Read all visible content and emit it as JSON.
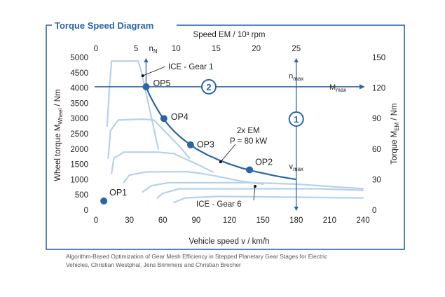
{
  "chart_data": {
    "type": "line",
    "title": "Torque Speed Diagram",
    "xlabel": "Vehicle speed v / km/h",
    "ylabel_left": "Wheel torque M",
    "ylabel_left_sub": "Wheel",
    "ylabel_left_unit": " / Nm",
    "xlabel_top": "Speed EM / 10³ rpm",
    "ylabel_right": "Torque M",
    "ylabel_right_sub": "EM",
    "ylabel_right_unit": " / Nm",
    "xlim": [
      0,
      240
    ],
    "ylim": [
      0,
      5000
    ],
    "x_ticks": [
      "0",
      "30",
      "60",
      "90",
      "120",
      "150",
      "180",
      "210",
      "240"
    ],
    "y_ticks": [
      "0",
      "500",
      "1000",
      "1500",
      "2000",
      "2500",
      "3000",
      "3500",
      "4000",
      "4500",
      "5000"
    ],
    "top_ticks": [
      "0",
      "5",
      "10",
      "15",
      "20",
      "25"
    ],
    "top_extra_label": "n",
    "top_extra_sub": "N",
    "right_ticks": [
      "0",
      "30",
      "60",
      "90",
      "120",
      "150"
    ],
    "em_curve": {
      "name": "2x EM",
      "note": "P = 80 kW",
      "x": [
        45,
        48,
        52,
        56,
        60,
        65,
        70,
        75,
        80,
        90,
        100,
        110,
        120,
        130,
        140,
        150,
        160,
        170,
        180
      ],
      "y": [
        4040,
        3780,
        3500,
        3250,
        3020,
        2790,
        2590,
        2420,
        2270,
        2010,
        1810,
        1650,
        1510,
        1390,
        1290,
        1210,
        1130,
        1065,
        1005
      ]
    },
    "gear_curves": [
      {
        "x": [
          10,
          12,
          14,
          38,
          41,
          44,
          47,
          50,
          53,
          56
        ],
        "y": [
          2750,
          4000,
          4880,
          4880,
          4500,
          4000,
          3500,
          3000,
          2500,
          2000
        ]
      },
      {
        "x": [
          11,
          13,
          20,
          42,
          52,
          60,
          68,
          76,
          84
        ],
        "y": [
          1700,
          2600,
          2950,
          2980,
          2950,
          2650,
          2350,
          2050,
          1700
        ]
      },
      {
        "x": [
          14,
          16,
          25,
          55,
          70,
          82,
          94,
          105
        ],
        "y": [
          1200,
          1700,
          1900,
          1900,
          1850,
          1650,
          1450,
          1250
        ]
      },
      {
        "x": [
          25,
          30,
          45,
          82,
          95,
          110,
          130,
          150
        ],
        "y": [
          900,
          1150,
          1250,
          1260,
          1200,
          1100,
          950,
          850
        ]
      },
      {
        "x": [
          42,
          50,
          65,
          140,
          180,
          240
        ],
        "y": [
          600,
          800,
          900,
          900,
          850,
          700
        ]
      },
      {
        "x": [
          55,
          60,
          75,
          200,
          240
        ],
        "y": [
          400,
          550,
          700,
          700,
          650
        ]
      },
      {
        "x": [
          70,
          80,
          110,
          240
        ],
        "y": [
          250,
          400,
          450,
          400
        ]
      }
    ],
    "operating_points": [
      {
        "name": "OP1",
        "x": 7,
        "y": 300
      },
      {
        "name": "OP2",
        "x": 138,
        "y": 1320
      },
      {
        "name": "OP3",
        "x": 85,
        "y": 2140
      },
      {
        "name": "OP4",
        "x": 61,
        "y": 3000
      },
      {
        "name": "OP5",
        "x": 45,
        "y": 4040
      }
    ],
    "m_max_line": {
      "y": 4040,
      "label": "M",
      "sub": "max",
      "marker": "2"
    },
    "n_max_line": {
      "x": 180,
      "label_top": "n",
      "label_top_sub": "max",
      "label_bottom": "v",
      "label_bottom_sub": "max",
      "marker": "1"
    },
    "n_n_line": {
      "x": 45
    },
    "annotations": [
      {
        "text": "ICE - Gear 1",
        "point_x": 42,
        "point_y": 4400
      },
      {
        "text": "ICE - Gear 6",
        "point_x": 143,
        "point_y": 780
      },
      {
        "text": "2x EM",
        "point_x": 112,
        "point_y": 1580
      }
    ],
    "colors": {
      "frame": "#1f5a9e",
      "em_curve": "#2c64a8",
      "gear": "#b6d1ea",
      "points": "#2c64a8",
      "lines": "#2c64a8"
    }
  },
  "caption": {
    "line1": "Algorithm-Based Optimization of Gear Mesh Efficiency in Stepped Planetary Gear Stages for Electric",
    "line2": "Vehicles, Christian Westphal, Jens Brimmers and Christian Brecher"
  }
}
